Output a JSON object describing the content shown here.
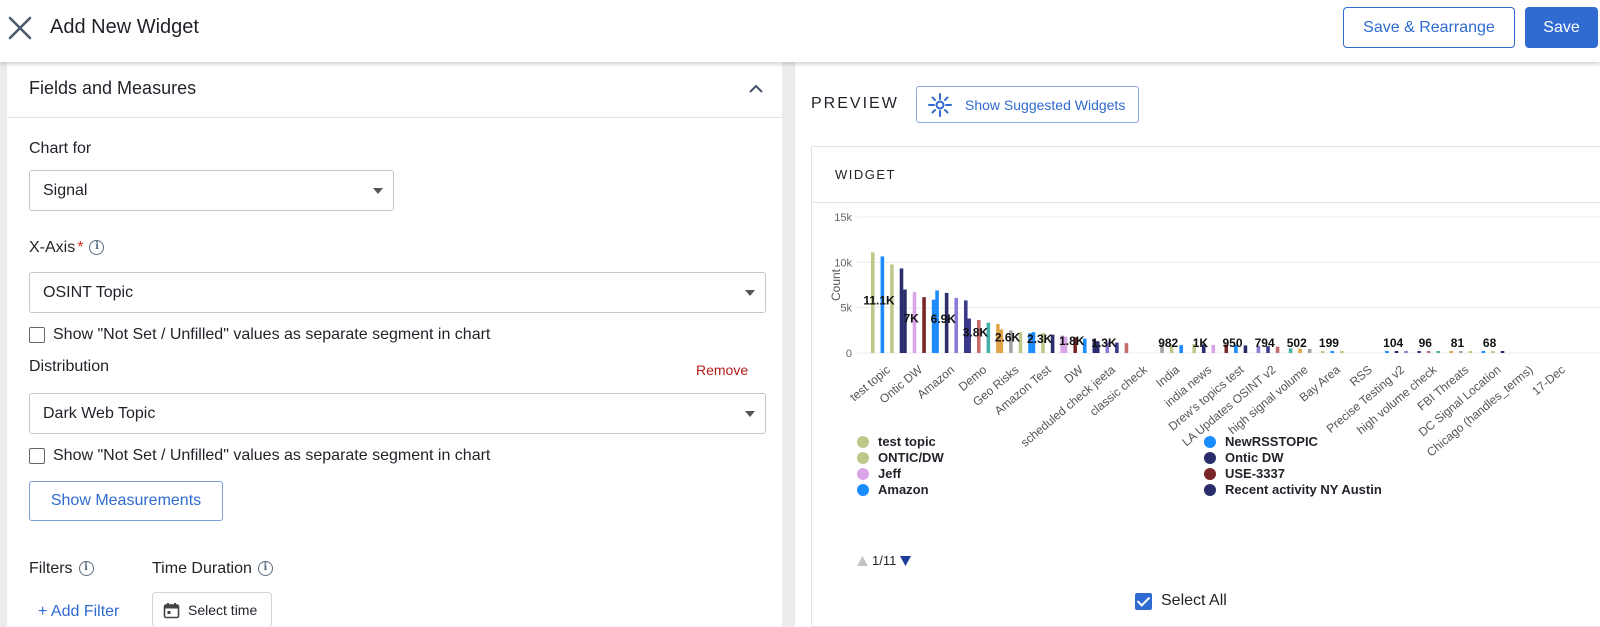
{
  "header": {
    "title": "Add New Widget",
    "save_rearrange_label": "Save & Rearrange",
    "save_label": "Save"
  },
  "left": {
    "section_title": "Fields and Measures",
    "chart_for_label": "Chart for",
    "chart_for_value": "Signal",
    "x_axis_label": "X-Axis",
    "x_axis_required": "*",
    "x_axis_value": "OSINT Topic",
    "not_set_label": "Show \"Not Set / Unfilled\" values as separate segment in chart",
    "distribution_label": "Distribution",
    "remove_label": "Remove",
    "distribution_value": "Dark Web Topic",
    "show_measurements_label": "Show Measurements",
    "filters_label": "Filters",
    "time_duration_label": "Time Duration",
    "add_filter_label": "+ Add Filter",
    "select_time_label": "Select time"
  },
  "right": {
    "preview_label": "PREVIEW",
    "suggest_label": "Show Suggested Widgets",
    "widget_label": "WIDGET",
    "pager_label": "1/11",
    "select_all_label": "Select All"
  },
  "legend": [
    {
      "label": "test topic",
      "color": "#bcc98b"
    },
    {
      "label": "ONTIC/DW",
      "color": "#bcc98b"
    },
    {
      "label": "Jeff",
      "color": "#d9a5e8"
    },
    {
      "label": "Amazon",
      "color": "#1a8cff"
    },
    {
      "label": "NewRSSTOPIC",
      "color": "#1a8cff"
    },
    {
      "label": "Ontic DW",
      "color": "#2a2d6b"
    },
    {
      "label": "USE-3337",
      "color": "#7a2626"
    },
    {
      "label": "Recent activity NY Austin",
      "color": "#2a2d6b"
    }
  ],
  "chart_data": {
    "type": "bar",
    "ylabel": "Count",
    "ylim": [
      0,
      15000
    ],
    "yticks": [
      "0",
      "5k",
      "10k",
      "15k"
    ],
    "categories": [
      "test topic",
      "Ontic DW",
      "Amazon",
      "Demo",
      "Geo Risks",
      "Amazon Test",
      "DW",
      "scheduled check jeeta",
      "classic check",
      "India",
      "india news",
      "Drew's topics test",
      "LA Updates OSINT v2",
      "high signal volume",
      "Bay Area",
      "RSS",
      "Precise Testing v2",
      "high volume check",
      "FBI Threats",
      "DC Signal Location",
      "Chicago (handles_terms)",
      "17-Dec"
    ],
    "totals": [
      11100,
      7000,
      6900,
      3800,
      2600,
      2300,
      1800,
      1300,
      null,
      982,
      1000,
      950,
      794,
      502,
      199,
      null,
      104,
      96,
      81,
      68,
      null,
      null
    ],
    "data_labels": [
      "11.1K",
      "7K",
      "6.9K",
      "3.8K",
      "2.6K",
      "2.3K",
      "1.8K",
      "1.3K",
      "",
      "982",
      "1K",
      "950",
      "794",
      "502",
      "199",
      "",
      "104",
      "96",
      "81",
      "68",
      "",
      ""
    ]
  }
}
